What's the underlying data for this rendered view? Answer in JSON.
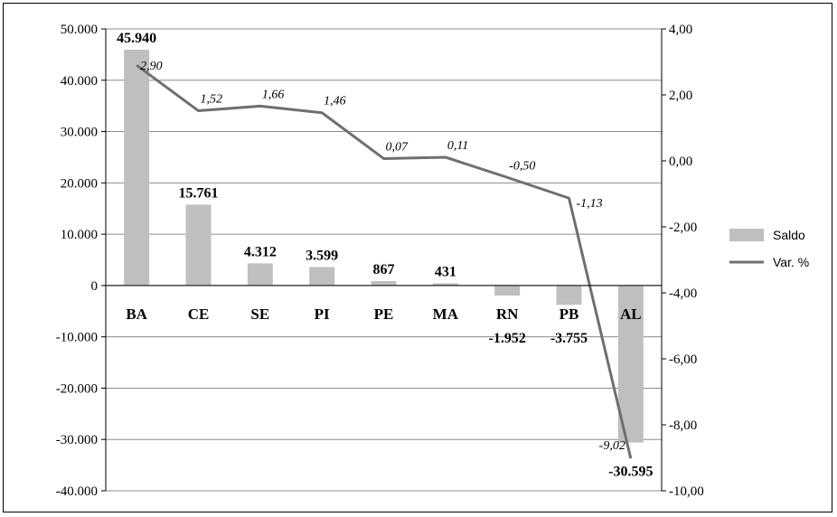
{
  "chart_data": {
    "type": "bar",
    "categories": [
      "BA",
      "CE",
      "SE",
      "PI",
      "PE",
      "MA",
      "RN",
      "PB",
      "AL"
    ],
    "series": [
      {
        "name": "Saldo",
        "kind": "bar",
        "axis": "left",
        "values": [
          45940,
          15761,
          4312,
          3599,
          867,
          431,
          -1952,
          -3755,
          -30595
        ],
        "labels": [
          "45.940",
          "15.761",
          "4.312",
          "3.599",
          "867",
          "431",
          "-1.952",
          "-3.755",
          "-30.595"
        ],
        "color": "#bfbfbf"
      },
      {
        "name": "Var. %",
        "kind": "line",
        "axis": "right",
        "values": [
          2.9,
          1.52,
          1.66,
          1.46,
          0.07,
          0.11,
          -0.5,
          -1.13,
          -9.02
        ],
        "labels": [
          "2,90",
          "1,52",
          "1,66",
          "1,46",
          "0,07",
          "0,11",
          "-0,50",
          "-1,13",
          "-9,02"
        ],
        "color": "#6f6f6f"
      }
    ],
    "y_left": {
      "ylim": [
        -40000,
        50000
      ],
      "ticks": [
        50000,
        40000,
        30000,
        20000,
        10000,
        0,
        -10000,
        -20000,
        -30000,
        -40000
      ],
      "tick_labels": [
        "50.000",
        "40.000",
        "30.000",
        "20.000",
        "10.000",
        "0",
        "-10.000",
        "-20.000",
        "-30.000",
        "-40.000"
      ]
    },
    "y_right": {
      "ylim": [
        -10,
        4
      ],
      "ticks": [
        4,
        2,
        0,
        -2,
        -4,
        -6,
        -8,
        -10
      ],
      "tick_labels": [
        "4,00",
        "2,00",
        "0,00",
        "-2,00",
        "-4,00",
        "-6,00",
        "-8,00",
        "-10,00"
      ]
    },
    "grid": true,
    "legend": {
      "placement": "right",
      "entries": [
        "Saldo",
        "Var. %"
      ]
    }
  }
}
